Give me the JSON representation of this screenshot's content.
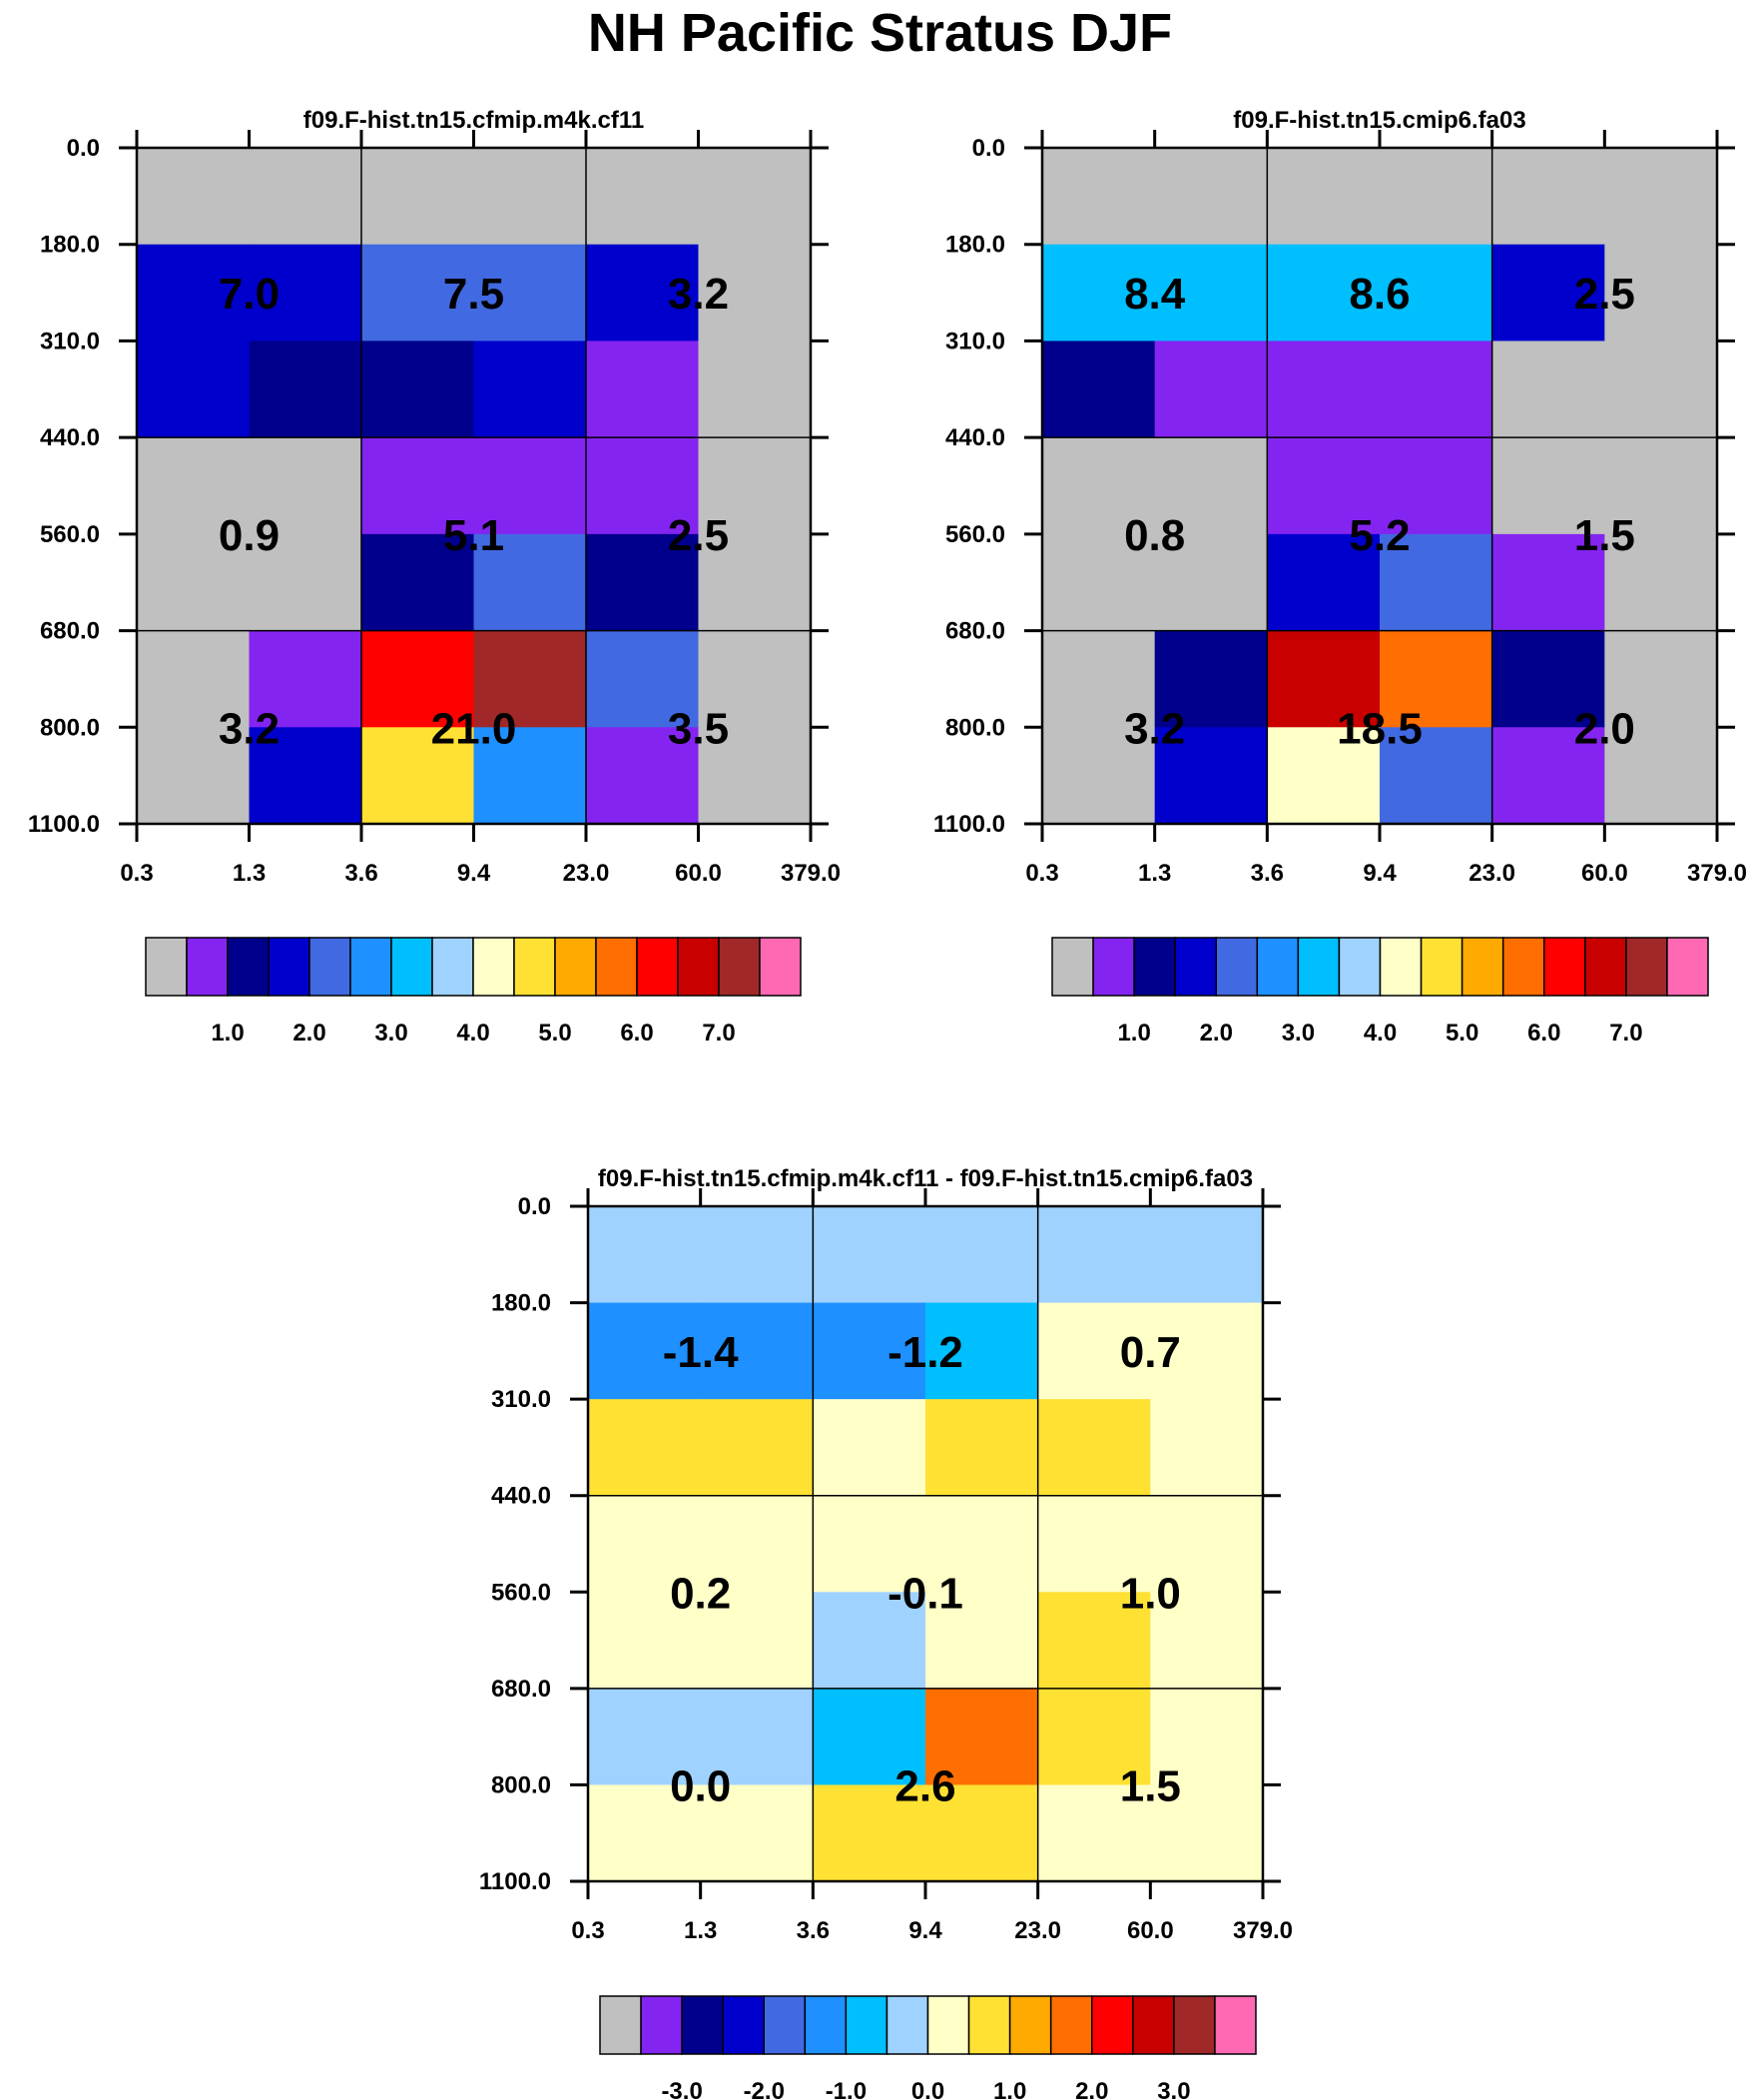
{
  "title": "NH Pacific Stratus DJF",
  "colors": {
    "palette": [
      "#c0c0c0",
      "#8424f0",
      "#00008c",
      "#0000cd",
      "#4169e1",
      "#1e90ff",
      "#00bfff",
      "#a0d2ff",
      "#ffffc8",
      "#ffe133",
      "#ffaa00",
      "#ff6e00",
      "#ff0000",
      "#c80000",
      "#a02828",
      "#ff69b4"
    ],
    "background": "#ffffff",
    "grid": "#000000"
  },
  "chart_data": [
    {
      "type": "heatmap",
      "title": "f09.F-hist.tn15.cfmip.m4k.cf11",
      "x_ticks": [
        "0.3",
        "1.3",
        "3.6",
        "9.4",
        "23.0",
        "60.0",
        "379.0"
      ],
      "y_ticks": [
        "0.0",
        "180.0",
        "310.0",
        "440.0",
        "560.0",
        "680.0",
        "800.0",
        "1100.0"
      ],
      "cells": [
        [
          0,
          0,
          0,
          0,
          0,
          0
        ],
        [
          3,
          3,
          4,
          4,
          3,
          0
        ],
        [
          3,
          2,
          2,
          3,
          1,
          0
        ],
        [
          0,
          0,
          1,
          1,
          1,
          0
        ],
        [
          0,
          0,
          2,
          4,
          2,
          0
        ],
        [
          0,
          1,
          12,
          14,
          4,
          0
        ],
        [
          0,
          3,
          9,
          5,
          1,
          0
        ]
      ],
      "labels": [
        [
          "7.0",
          "7.5",
          "3.2"
        ],
        [
          "0.9",
          "5.1",
          "2.5"
        ],
        [
          "3.2",
          "21.0",
          "3.5"
        ]
      ],
      "colorbar_labels": [
        "1.0",
        "2.0",
        "3.0",
        "4.0",
        "5.0",
        "6.0",
        "7.0"
      ]
    },
    {
      "type": "heatmap",
      "title": "f09.F-hist.tn15.cmip6.fa03",
      "x_ticks": [
        "0.3",
        "1.3",
        "3.6",
        "9.4",
        "23.0",
        "60.0",
        "379.0"
      ],
      "y_ticks": [
        "0.0",
        "180.0",
        "310.0",
        "440.0",
        "560.0",
        "680.0",
        "800.0",
        "1100.0"
      ],
      "cells": [
        [
          0,
          0,
          0,
          0,
          0,
          0
        ],
        [
          6,
          6,
          6,
          6,
          3,
          0
        ],
        [
          2,
          1,
          1,
          1,
          0,
          0
        ],
        [
          0,
          0,
          1,
          1,
          0,
          0
        ],
        [
          0,
          0,
          3,
          4,
          1,
          0
        ],
        [
          0,
          2,
          13,
          11,
          2,
          0
        ],
        [
          0,
          3,
          8,
          4,
          1,
          0
        ]
      ],
      "labels": [
        [
          "8.4",
          "8.6",
          "2.5"
        ],
        [
          "0.8",
          "5.2",
          "1.5"
        ],
        [
          "3.2",
          "18.5",
          "2.0"
        ]
      ],
      "colorbar_labels": [
        "1.0",
        "2.0",
        "3.0",
        "4.0",
        "5.0",
        "6.0",
        "7.0"
      ]
    },
    {
      "type": "heatmap",
      "title": "f09.F-hist.tn15.cfmip.m4k.cf11 - f09.F-hist.tn15.cmip6.fa03",
      "x_ticks": [
        "0.3",
        "1.3",
        "3.6",
        "9.4",
        "23.0",
        "60.0",
        "379.0"
      ],
      "y_ticks": [
        "0.0",
        "180.0",
        "310.0",
        "440.0",
        "560.0",
        "680.0",
        "800.0",
        "1100.0"
      ],
      "cells": [
        [
          7,
          7,
          7,
          7,
          7,
          7
        ],
        [
          5,
          5,
          5,
          6,
          8,
          8
        ],
        [
          9,
          9,
          8,
          9,
          9,
          8
        ],
        [
          8,
          8,
          8,
          8,
          8,
          8
        ],
        [
          8,
          8,
          7,
          8,
          9,
          8
        ],
        [
          7,
          7,
          6,
          11,
          9,
          8
        ],
        [
          8,
          8,
          9,
          9,
          8,
          8
        ]
      ],
      "labels": [
        [
          "-1.4",
          "-1.2",
          "0.7"
        ],
        [
          "0.2",
          "-0.1",
          "1.0"
        ],
        [
          "0.0",
          "2.6",
          "1.5"
        ]
      ],
      "colorbar_labels": [
        "-3.0",
        "-2.0",
        "-1.0",
        "0.0",
        "1.0",
        "2.0",
        "3.0"
      ]
    }
  ]
}
